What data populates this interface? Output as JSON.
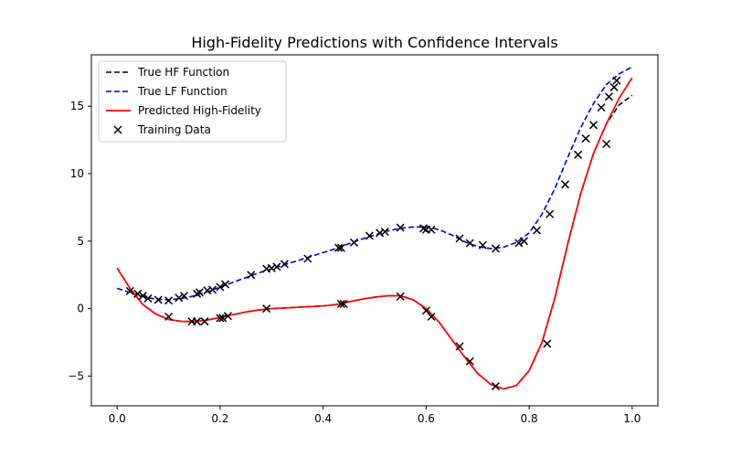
{
  "chart_data": {
    "type": "line",
    "title": "High-Fidelity Predictions with Confidence Intervals",
    "xlabel": "",
    "ylabel": "",
    "xlim": [
      -0.05,
      1.05
    ],
    "ylim": [
      -7.2,
      18.8
    ],
    "xticks": [
      0.0,
      0.2,
      0.4,
      0.6,
      0.8,
      1.0
    ],
    "xtick_labels": [
      "0.0",
      "0.2",
      "0.4",
      "0.6",
      "0.8",
      "1.0"
    ],
    "yticks": [
      -5,
      0,
      5,
      10,
      15
    ],
    "ytick_labels": [
      "−5",
      "0",
      "5",
      "10",
      "15"
    ],
    "grid": false,
    "legend_position": "top-left",
    "series": [
      {
        "name": "True HF Function",
        "kind": "line",
        "style": "dashed",
        "color": "#000000",
        "x": [
          0.0,
          0.025,
          0.05,
          0.075,
          0.1,
          0.125,
          0.15,
          0.175,
          0.2,
          0.225,
          0.25,
          0.275,
          0.3,
          0.325,
          0.35,
          0.375,
          0.4,
          0.425,
          0.45,
          0.475,
          0.5,
          0.525,
          0.55,
          0.575,
          0.6,
          0.625,
          0.65,
          0.675,
          0.7,
          0.725,
          0.75,
          0.775,
          0.8,
          0.825,
          0.85,
          0.875,
          0.9,
          0.925,
          0.95,
          0.975,
          1.0
        ],
        "y": [
          3.0,
          1.5,
          0.3,
          -0.4,
          -0.8,
          -0.95,
          -0.95,
          -0.85,
          -0.65,
          -0.45,
          -0.25,
          -0.1,
          0.0,
          0.05,
          0.1,
          0.15,
          0.2,
          0.3,
          0.5,
          0.7,
          0.85,
          0.95,
          0.95,
          0.65,
          0.0,
          -1.0,
          -2.3,
          -3.6,
          -4.8,
          -5.6,
          -5.95,
          -5.7,
          -4.6,
          -2.5,
          0.8,
          4.8,
          8.5,
          11.5,
          13.7,
          15.1,
          15.8
        ]
      },
      {
        "name": "True LF Function",
        "kind": "line",
        "style": "dashed",
        "color": "#0000cc",
        "x": [
          0.0,
          0.025,
          0.05,
          0.075,
          0.1,
          0.125,
          0.15,
          0.175,
          0.2,
          0.225,
          0.25,
          0.275,
          0.3,
          0.325,
          0.35,
          0.375,
          0.4,
          0.425,
          0.45,
          0.475,
          0.5,
          0.525,
          0.55,
          0.575,
          0.6,
          0.625,
          0.65,
          0.675,
          0.7,
          0.725,
          0.75,
          0.775,
          0.8,
          0.825,
          0.85,
          0.875,
          0.9,
          0.925,
          0.95,
          0.975,
          1.0
        ],
        "y": [
          1.5,
          1.2,
          0.9,
          0.7,
          0.65,
          0.75,
          0.95,
          1.25,
          1.6,
          1.95,
          2.3,
          2.65,
          2.95,
          3.25,
          3.55,
          3.85,
          4.15,
          4.45,
          4.8,
          5.15,
          5.45,
          5.75,
          5.95,
          6.05,
          6.05,
          5.85,
          5.45,
          4.95,
          4.6,
          4.45,
          4.55,
          4.9,
          5.6,
          7.0,
          8.9,
          11.2,
          13.4,
          15.2,
          16.6,
          17.4,
          17.9
        ]
      },
      {
        "name": "Predicted High-Fidelity",
        "kind": "line",
        "style": "solid",
        "color": "#ff0000",
        "x": [
          0.0,
          0.025,
          0.05,
          0.075,
          0.1,
          0.125,
          0.15,
          0.175,
          0.2,
          0.225,
          0.25,
          0.275,
          0.3,
          0.325,
          0.35,
          0.375,
          0.4,
          0.425,
          0.45,
          0.475,
          0.5,
          0.525,
          0.55,
          0.575,
          0.6,
          0.625,
          0.65,
          0.675,
          0.7,
          0.725,
          0.75,
          0.775,
          0.8,
          0.825,
          0.85,
          0.875,
          0.9,
          0.925,
          0.95,
          0.975,
          1.0
        ],
        "y": [
          3.0,
          1.5,
          0.3,
          -0.4,
          -0.8,
          -0.95,
          -0.95,
          -0.85,
          -0.65,
          -0.45,
          -0.25,
          -0.1,
          0.0,
          0.05,
          0.1,
          0.15,
          0.2,
          0.3,
          0.5,
          0.7,
          0.85,
          0.95,
          0.95,
          0.65,
          0.0,
          -1.0,
          -2.3,
          -3.6,
          -4.8,
          -5.6,
          -5.95,
          -5.7,
          -4.6,
          -2.5,
          0.8,
          4.8,
          8.5,
          11.5,
          13.7,
          15.6,
          17.1
        ]
      },
      {
        "name": "Training Data",
        "kind": "scatter",
        "marker": "x",
        "color": "#000000",
        "x": [
          0.025,
          0.04,
          0.05,
          0.06,
          0.08,
          0.1,
          0.12,
          0.13,
          0.155,
          0.16,
          0.175,
          0.185,
          0.2,
          0.21,
          0.26,
          0.29,
          0.3,
          0.31,
          0.325,
          0.37,
          0.43,
          0.435,
          0.46,
          0.49,
          0.51,
          0.52,
          0.55,
          0.595,
          0.6,
          0.61,
          0.665,
          0.685,
          0.71,
          0.735,
          0.78,
          0.79,
          0.815,
          0.84,
          0.87,
          0.895,
          0.91,
          0.925,
          0.94,
          0.955,
          0.965,
          0.97,
          0.1,
          0.145,
          0.155,
          0.17,
          0.2,
          0.205,
          0.215,
          0.29,
          0.435,
          0.44,
          0.55,
          0.6,
          0.61,
          0.665,
          0.685,
          0.735,
          0.835,
          0.95
        ],
        "y": [
          1.3,
          1.1,
          0.95,
          0.75,
          0.65,
          0.6,
          0.8,
          0.95,
          1.1,
          1.2,
          1.35,
          1.4,
          1.6,
          1.8,
          2.5,
          2.95,
          3.0,
          3.1,
          3.3,
          3.7,
          4.5,
          4.5,
          4.9,
          5.4,
          5.6,
          5.7,
          6.0,
          5.95,
          5.85,
          5.85,
          5.2,
          4.85,
          4.7,
          4.45,
          4.85,
          5.0,
          5.8,
          7.0,
          9.2,
          11.4,
          12.6,
          13.6,
          14.9,
          15.7,
          16.4,
          16.9,
          -0.6,
          -0.95,
          -0.95,
          -0.95,
          -0.7,
          -0.7,
          -0.55,
          0.0,
          0.35,
          0.35,
          0.9,
          -0.15,
          -0.6,
          -2.8,
          -3.9,
          -5.75,
          -2.6,
          12.2
        ]
      }
    ]
  }
}
